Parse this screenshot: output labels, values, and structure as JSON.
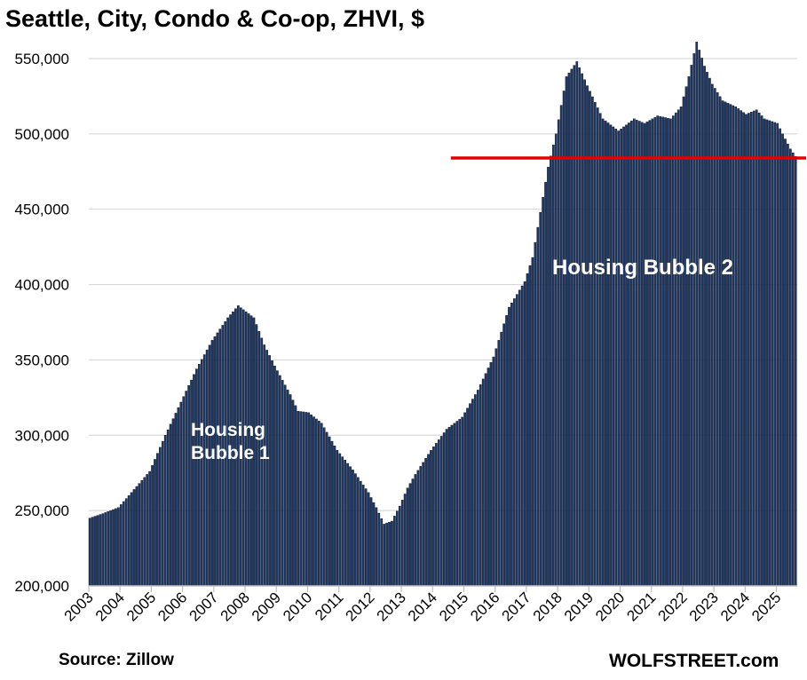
{
  "title": "Seattle, City, Condo & Co-op, ZHVI, $",
  "source": "Source: Zillow",
  "brand": "WOLFSTREET.com",
  "colors": {
    "bar": "#1f3864",
    "bar_edge": "#0b1426",
    "reference_line": "#e80000",
    "grid": "#d9d9d9",
    "axis": "#bfbfbf"
  },
  "chart_data": {
    "type": "bar",
    "frequency": "monthly",
    "x_start": "2003-01",
    "x_end": "2025-08",
    "title": "Seattle, City, Condo & Co-op, ZHVI, $",
    "xlabel": "",
    "ylabel": "",
    "ylim": [
      200000,
      560000
    ],
    "yticks": [
      200000,
      250000,
      300000,
      350000,
      400000,
      450000,
      500000,
      550000
    ],
    "ytick_labels": [
      "200,000",
      "250,000",
      "300,000",
      "350,000",
      "400,000",
      "450,000",
      "500,000",
      "550,000"
    ],
    "xtick_labels": [
      "2003",
      "2004",
      "2005",
      "2006",
      "2007",
      "2008",
      "2009",
      "2010",
      "2011",
      "2012",
      "2013",
      "2014",
      "2015",
      "2016",
      "2017",
      "2018",
      "2019",
      "2020",
      "2021",
      "2022",
      "2023",
      "2024",
      "2025"
    ],
    "grid": true,
    "reference_line": {
      "value": 484000,
      "from": "2014-08",
      "to": "2025-08"
    },
    "annotations": [
      {
        "lines": [
          "Housing",
          "Bubble 1"
        ]
      },
      {
        "lines": [
          "Housing Bubble 2"
        ]
      }
    ],
    "anchors": [
      [
        "2003-01",
        245000
      ],
      [
        "2003-06",
        248000
      ],
      [
        "2003-12",
        252000
      ],
      [
        "2004-06",
        264000
      ],
      [
        "2004-12",
        276000
      ],
      [
        "2005-06",
        300000
      ],
      [
        "2005-12",
        322000
      ],
      [
        "2006-06",
        344000
      ],
      [
        "2006-12",
        363000
      ],
      [
        "2007-06",
        378000
      ],
      [
        "2007-10",
        386000
      ],
      [
        "2008-01",
        382000
      ],
      [
        "2008-04",
        378000
      ],
      [
        "2008-08",
        360000
      ],
      [
        "2008-12",
        346000
      ],
      [
        "2009-06",
        327000
      ],
      [
        "2009-09",
        316000
      ],
      [
        "2010-01",
        315000
      ],
      [
        "2010-06",
        308000
      ],
      [
        "2010-12",
        290000
      ],
      [
        "2011-06",
        277000
      ],
      [
        "2011-12",
        262000
      ],
      [
        "2012-03",
        252000
      ],
      [
        "2012-06",
        241000
      ],
      [
        "2012-09",
        243000
      ],
      [
        "2012-12",
        253000
      ],
      [
        "2013-03",
        265000
      ],
      [
        "2013-06",
        274000
      ],
      [
        "2013-12",
        290000
      ],
      [
        "2014-06",
        304000
      ],
      [
        "2014-12",
        312000
      ],
      [
        "2015-06",
        330000
      ],
      [
        "2015-12",
        352000
      ],
      [
        "2016-06",
        385000
      ],
      [
        "2016-12",
        402000
      ],
      [
        "2017-03",
        418000
      ],
      [
        "2017-06",
        448000
      ],
      [
        "2017-09",
        478000
      ],
      [
        "2017-12",
        500000
      ],
      [
        "2018-04",
        538000
      ],
      [
        "2018-08",
        548000
      ],
      [
        "2018-12",
        532000
      ],
      [
        "2019-06",
        510000
      ],
      [
        "2019-12",
        502000
      ],
      [
        "2020-06",
        510000
      ],
      [
        "2020-10",
        507000
      ],
      [
        "2021-03",
        512000
      ],
      [
        "2021-08",
        510000
      ],
      [
        "2021-12",
        518000
      ],
      [
        "2022-03",
        538000
      ],
      [
        "2022-06",
        561000
      ],
      [
        "2022-09",
        545000
      ],
      [
        "2022-12",
        533000
      ],
      [
        "2023-04",
        522000
      ],
      [
        "2023-09",
        518000
      ],
      [
        "2024-01",
        513000
      ],
      [
        "2024-05",
        516000
      ],
      [
        "2024-08",
        510000
      ],
      [
        "2025-01",
        507000
      ],
      [
        "2025-03",
        500000
      ],
      [
        "2025-06",
        490000
      ],
      [
        "2025-08",
        485000
      ]
    ]
  }
}
